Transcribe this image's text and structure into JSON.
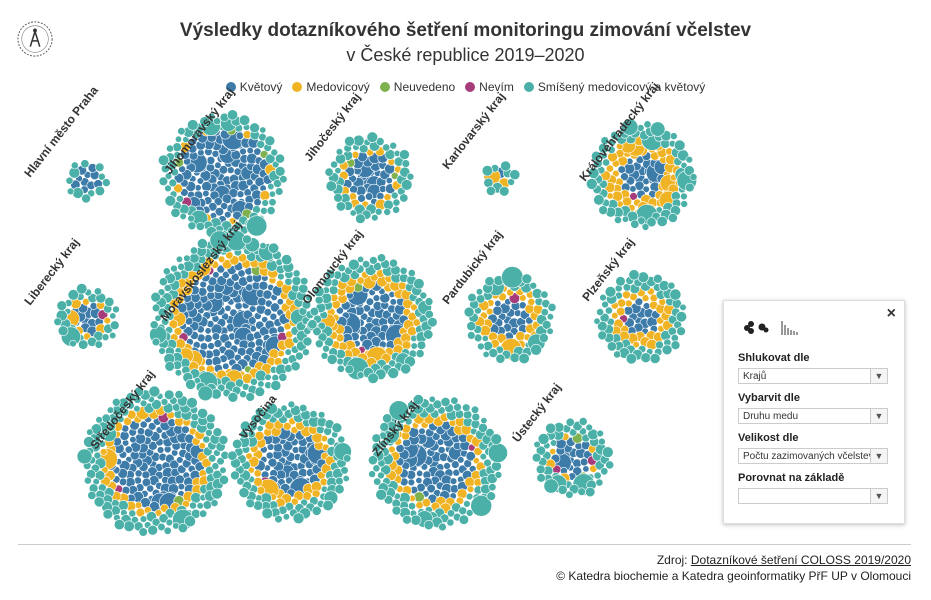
{
  "title": "Výsledky dotazníkového šetření monitoringu zimování včelstev",
  "subtitle": "v České republice 2019–2020",
  "legend": [
    {
      "label": "Květový",
      "color": "#3d7ba9"
    },
    {
      "label": "Medovicový",
      "color": "#f0b323"
    },
    {
      "label": "Neuvedeno",
      "color": "#7fb24f"
    },
    {
      "label": "Nevím",
      "color": "#a63d7a"
    },
    {
      "label": "Smíšený medovicový a květový",
      "color": "#4bb0a8"
    }
  ],
  "chart_data": {
    "type": "packed-bubble",
    "colors": {
      "kvetovy": "#3d7ba9",
      "medovicovy": "#f0b323",
      "neuvedeno": "#7fb24f",
      "nevim": "#a63d7a",
      "smiseny": "#4bb0a8"
    },
    "regions": [
      {
        "name": "Hlavní město Praha",
        "counts": {
          "kvetovy": 10,
          "medovicovy": 0,
          "neuvedeno": 0,
          "nevim": 0,
          "smiseny": 12
        }
      },
      {
        "name": "Jihomoravský kraj",
        "counts": {
          "kvetovy": 110,
          "medovicovy": 8,
          "neuvedeno": 4,
          "nevim": 1,
          "smiseny": 80
        }
      },
      {
        "name": "Jihočeský kraj",
        "counts": {
          "kvetovy": 32,
          "medovicovy": 14,
          "neuvedeno": 2,
          "nevim": 0,
          "smiseny": 48
        }
      },
      {
        "name": "Karlovarský kraj",
        "counts": {
          "kvetovy": 2,
          "medovicovy": 2,
          "neuvedeno": 0,
          "nevim": 0,
          "smiseny": 10
        }
      },
      {
        "name": "Královéhradecký kraj",
        "counts": {
          "kvetovy": 26,
          "medovicovy": 50,
          "neuvedeno": 0,
          "nevim": 1,
          "smiseny": 70
        }
      },
      {
        "name": "Liberecký kraj",
        "counts": {
          "kvetovy": 12,
          "medovicovy": 8,
          "neuvedeno": 0,
          "nevim": 1,
          "smiseny": 30
        }
      },
      {
        "name": "Moravskoslezský kraj",
        "counts": {
          "kvetovy": 150,
          "medovicovy": 60,
          "neuvedeno": 2,
          "nevim": 3,
          "smiseny": 140
        }
      },
      {
        "name": "Olomoucký kraj",
        "counts": {
          "kvetovy": 60,
          "medovicovy": 50,
          "neuvedeno": 1,
          "nevim": 1,
          "smiseny": 90
        }
      },
      {
        "name": "Pardubický kraj",
        "counts": {
          "kvetovy": 22,
          "medovicovy": 30,
          "neuvedeno": 0,
          "nevim": 1,
          "smiseny": 50
        }
      },
      {
        "name": "Plzeňský kraj",
        "counts": {
          "kvetovy": 16,
          "medovicovy": 30,
          "neuvedeno": 0,
          "nevim": 1,
          "smiseny": 60
        }
      },
      {
        "name": "Středočeský kraj",
        "counts": {
          "kvetovy": 110,
          "medovicovy": 40,
          "neuvedeno": 1,
          "nevim": 2,
          "smiseny": 130
        }
      },
      {
        "name": "Vysočina",
        "counts": {
          "kvetovy": 55,
          "medovicovy": 40,
          "neuvedeno": 0,
          "nevim": 1,
          "smiseny": 90
        }
      },
      {
        "name": "Zlínský kraj",
        "counts": {
          "kvetovy": 80,
          "medovicovy": 40,
          "neuvedeno": 1,
          "nevim": 1,
          "smiseny": 110
        }
      },
      {
        "name": "Ústecký kraj",
        "counts": {
          "kvetovy": 20,
          "medovicovy": 6,
          "neuvedeno": 2,
          "nevim": 2,
          "smiseny": 50
        }
      }
    ]
  },
  "panel": {
    "group_label": "Shlukovat dle",
    "group_value": "Krajů",
    "color_label": "Vybarvit dle",
    "color_value": "Druhu medu",
    "size_label": "Velikost dle",
    "size_value": "Počtu zazimovaných včelstev",
    "compare_label": "Porovnat na základě",
    "compare_value": "",
    "close": "×"
  },
  "source": {
    "prefix": "Zdroj: ",
    "link": "Dotazníkové šetření COLOSS 2019/2020",
    "credit": "© Katedra biochemie a Katedra geoinformatiky PřF UP v Olomouci"
  }
}
